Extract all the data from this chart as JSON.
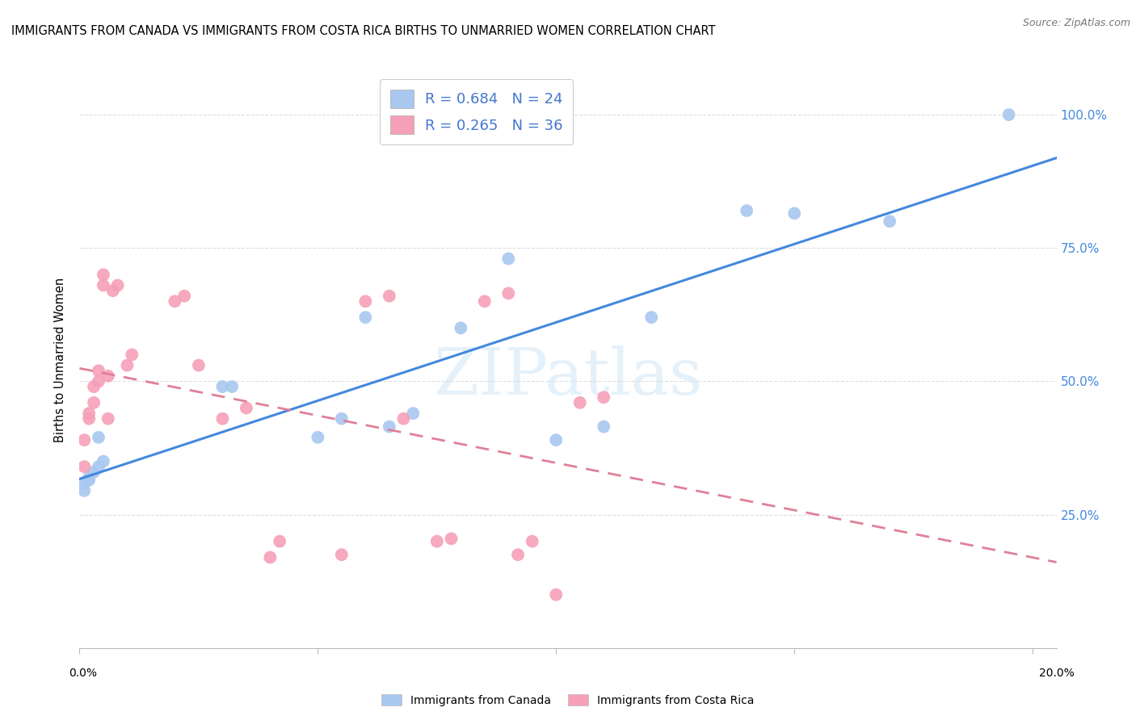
{
  "title": "IMMIGRANTS FROM CANADA VS IMMIGRANTS FROM COSTA RICA BIRTHS TO UNMARRIED WOMEN CORRELATION CHART",
  "source": "Source: ZipAtlas.com",
  "ylabel": "Births to Unmarried Women",
  "watermark": "ZIPatlas",
  "canada_R": 0.684,
  "canada_N": 24,
  "costarica_R": 0.265,
  "costarica_N": 36,
  "canada_color": "#a8c8f0",
  "costarica_color": "#f5a0b8",
  "canada_line_color": "#4488dd",
  "costarica_line_color": "#e08098",
  "legend_text_color": "#4477cc",
  "canada_scatter_x": [
    0.001,
    0.001,
    0.002,
    0.002,
    0.003,
    0.004,
    0.004,
    0.005,
    0.03,
    0.032,
    0.05,
    0.055,
    0.06,
    0.065,
    0.07,
    0.08,
    0.09,
    0.1,
    0.11,
    0.12,
    0.14,
    0.15,
    0.17,
    0.195
  ],
  "canada_scatter_y": [
    0.295,
    0.31,
    0.315,
    0.32,
    0.33,
    0.34,
    0.395,
    0.35,
    0.49,
    0.49,
    0.395,
    0.43,
    0.62,
    0.415,
    0.44,
    0.6,
    0.73,
    0.39,
    0.415,
    0.62,
    0.82,
    0.815,
    0.8,
    1.0
  ],
  "costarica_scatter_x": [
    0.001,
    0.001,
    0.002,
    0.002,
    0.003,
    0.003,
    0.004,
    0.004,
    0.005,
    0.005,
    0.006,
    0.006,
    0.007,
    0.008,
    0.01,
    0.011,
    0.02,
    0.022,
    0.025,
    0.03,
    0.035,
    0.04,
    0.042,
    0.055,
    0.06,
    0.065,
    0.068,
    0.075,
    0.078,
    0.085,
    0.09,
    0.092,
    0.095,
    0.1,
    0.105,
    0.11
  ],
  "costarica_scatter_y": [
    0.34,
    0.39,
    0.43,
    0.44,
    0.46,
    0.49,
    0.5,
    0.52,
    0.68,
    0.7,
    0.43,
    0.51,
    0.67,
    0.68,
    0.53,
    0.55,
    0.65,
    0.66,
    0.53,
    0.43,
    0.45,
    0.17,
    0.2,
    0.175,
    0.65,
    0.66,
    0.43,
    0.2,
    0.205,
    0.65,
    0.665,
    0.175,
    0.2,
    0.1,
    0.46,
    0.47
  ],
  "xlim_min": 0.0,
  "xlim_max": 0.205,
  "ylim_min": 0.0,
  "ylim_max": 1.08,
  "xticks": [
    0.0,
    0.05,
    0.1,
    0.15,
    0.2
  ],
  "yticks": [
    0.25,
    0.5,
    0.75,
    1.0
  ],
  "ytick_labels": [
    "25.0%",
    "50.0%",
    "75.0%",
    "100.0%"
  ]
}
